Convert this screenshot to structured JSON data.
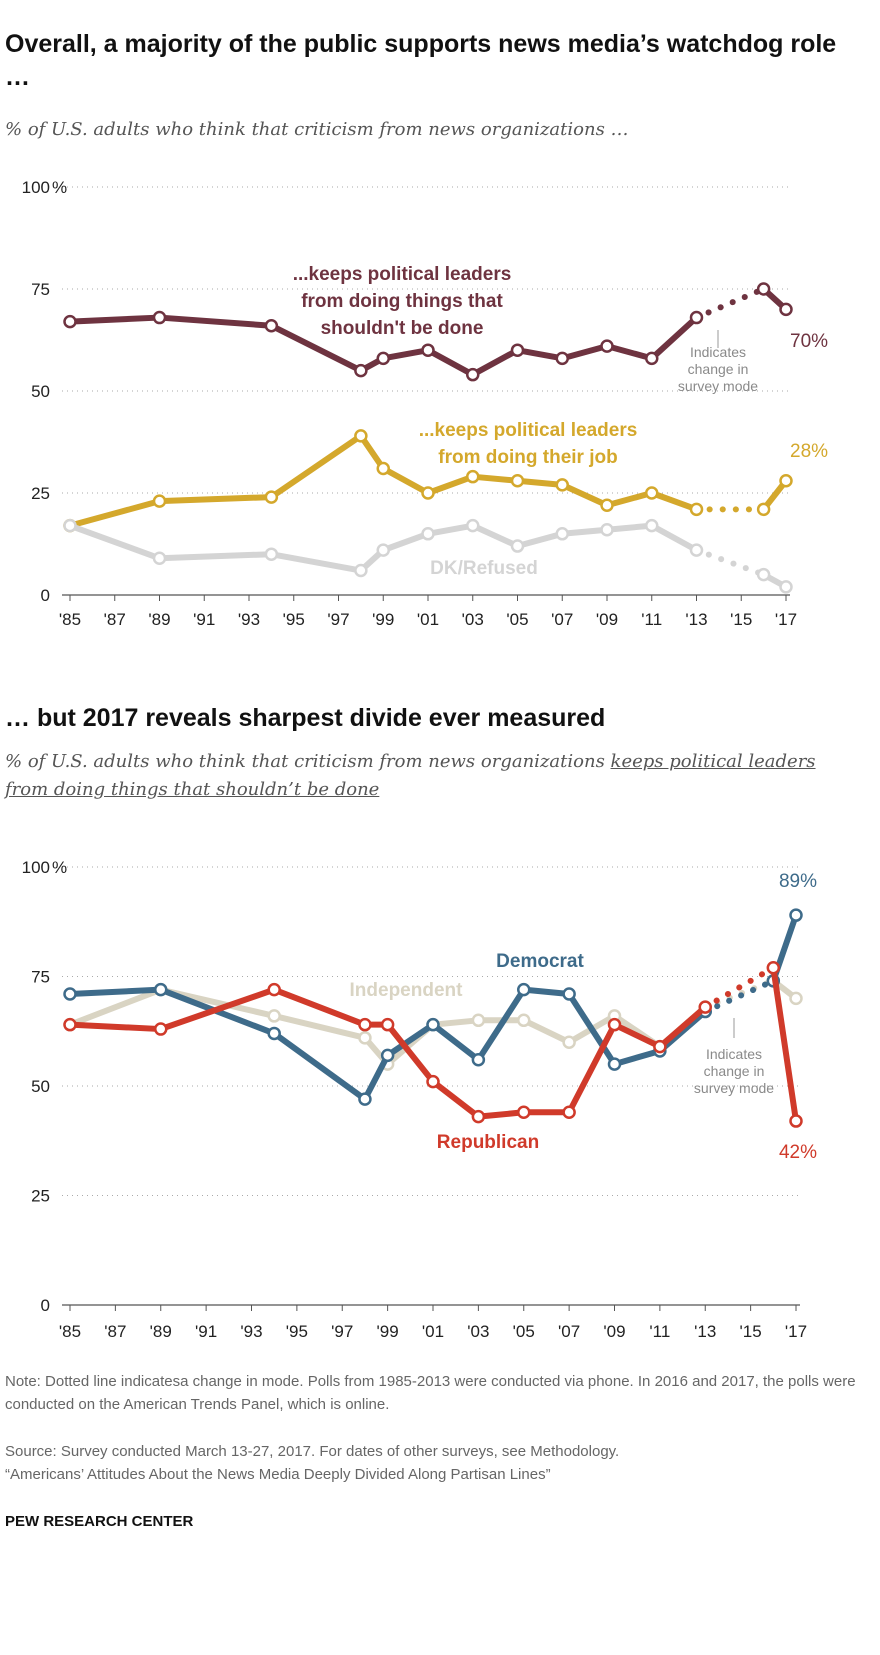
{
  "chart_data": [
    {
      "type": "line",
      "title": "Overall, a majority of the public supports news media’s watchdog role …",
      "subtitle": "% of U.S. adults who think that criticism from news organizations …",
      "ylim": [
        0,
        100
      ],
      "yticks": [
        0,
        25,
        50,
        75,
        100
      ],
      "ytick_labels": [
        "0",
        "25",
        "50",
        "75",
        "100"
      ],
      "y_unit_label": "%",
      "xlim": [
        1985,
        2017
      ],
      "x_ticks": [
        1985,
        1987,
        1989,
        1991,
        1993,
        1995,
        1997,
        1999,
        2001,
        2003,
        2005,
        2007,
        2009,
        2011,
        2013,
        2015,
        2017
      ],
      "x_tick_labels": [
        "'85",
        "'87",
        "'89",
        "'91",
        "'93",
        "'95",
        "'97",
        "'99",
        "'01",
        "'03",
        "'05",
        "'07",
        "'09",
        "'11",
        "'13",
        "'15",
        "'17"
      ],
      "mode_change_after": 2013,
      "mode_change_label": [
        "Indicates",
        "change in",
        "survey mode"
      ],
      "series": [
        {
          "name": "...keeps political leaders from doing things that shouldn't be done",
          "label_lines": [
            "...keeps political leaders",
            "from doing things that",
            "shouldn't be done"
          ],
          "color": "#6e3340",
          "x": [
            1985,
            1989,
            1994,
            1998,
            1999,
            2001,
            2003,
            2005,
            2007,
            2009,
            2011,
            2013,
            2016,
            2017
          ],
          "values": [
            67,
            68,
            66,
            55,
            58,
            60,
            54,
            60,
            58,
            61,
            58,
            68,
            75,
            70
          ],
          "end_label": "70%"
        },
        {
          "name": "...keeps political leaders from doing their job",
          "label_lines": [
            "...keeps political leaders",
            "from doing their job"
          ],
          "color": "#d4a82c",
          "x": [
            1985,
            1989,
            1994,
            1998,
            1999,
            2001,
            2003,
            2005,
            2007,
            2009,
            2011,
            2013,
            2016,
            2017
          ],
          "values": [
            17,
            23,
            24,
            39,
            31,
            25,
            29,
            28,
            27,
            22,
            25,
            21,
            21,
            28
          ],
          "end_label": "28%"
        },
        {
          "name": "DK/Refused",
          "label_lines": [
            "DK/Refused"
          ],
          "color": "#d4d4d4",
          "x": [
            1985,
            1989,
            1994,
            1998,
            1999,
            2001,
            2003,
            2005,
            2007,
            2009,
            2011,
            2013,
            2016,
            2017
          ],
          "values": [
            17,
            9,
            10,
            6,
            11,
            15,
            17,
            12,
            15,
            16,
            17,
            11,
            5,
            2
          ],
          "end_label": ""
        }
      ]
    },
    {
      "type": "line",
      "title": "… but 2017 reveals sharpest divide ever measured",
      "subtitle": "% of U.S. adults who think that criticism from news organizations ",
      "subtitle_underlined": "keeps political leaders from doing things that shouldn’t be done",
      "ylim": [
        0,
        100
      ],
      "yticks": [
        0,
        25,
        50,
        75,
        100
      ],
      "ytick_labels": [
        "0",
        "25",
        "50",
        "75",
        "100"
      ],
      "y_unit_label": "%",
      "xlim": [
        1985,
        2017
      ],
      "x_ticks": [
        1985,
        1987,
        1989,
        1991,
        1993,
        1995,
        1997,
        1999,
        2001,
        2003,
        2005,
        2007,
        2009,
        2011,
        2013,
        2015,
        2017
      ],
      "x_tick_labels": [
        "'85",
        "'87",
        "'89",
        "'91",
        "'93",
        "'95",
        "'97",
        "'99",
        "'01",
        "'03",
        "'05",
        "'07",
        "'09",
        "'11",
        "'13",
        "'15",
        "'17"
      ],
      "mode_change_after": 2013,
      "mode_change_label": [
        "Indicates",
        "change in",
        "survey mode"
      ],
      "series": [
        {
          "name": "Independent",
          "label_lines": [
            "Independent"
          ],
          "color": "#d9d4c3",
          "x": [
            1985,
            1989,
            1994,
            1998,
            1999,
            2001,
            2003,
            2005,
            2007,
            2009,
            2011,
            2013,
            2016,
            2017
          ],
          "values": [
            64,
            72,
            66,
            61,
            55,
            64,
            65,
            65,
            60,
            66,
            59,
            68,
            74,
            70
          ],
          "end_label": ""
        },
        {
          "name": "Democrat",
          "label_lines": [
            "Democrat"
          ],
          "color": "#3e6b8a",
          "x": [
            1985,
            1989,
            1994,
            1998,
            1999,
            2001,
            2003,
            2005,
            2007,
            2009,
            2011,
            2013,
            2016,
            2017
          ],
          "values": [
            71,
            72,
            62,
            47,
            57,
            64,
            56,
            72,
            71,
            55,
            58,
            67,
            74,
            89
          ],
          "end_label": "89%"
        },
        {
          "name": "Republican",
          "label_lines": [
            "Republican"
          ],
          "color": "#d03a2a",
          "x": [
            1985,
            1989,
            1994,
            1998,
            1999,
            2001,
            2003,
            2005,
            2007,
            2009,
            2011,
            2013,
            2016,
            2017
          ],
          "values": [
            64,
            63,
            72,
            64,
            64,
            51,
            43,
            44,
            44,
            64,
            59,
            68,
            77,
            42
          ],
          "end_label": "42%"
        }
      ]
    }
  ],
  "note": "Note: Dotted line indicatesa change in mode. Polls from 1985-2013 were conducted via phone. In 2016 and 2017, the polls were conducted on the American Trends Panel, which is online.",
  "source": "Source: Survey conducted March 13-27, 2017. For dates of other surveys, see Methodology.",
  "report": "“Americans’ Attitudes About the News Media Deeply Divided Along Partisan Lines”",
  "brand": "PEW RESEARCH CENTER"
}
